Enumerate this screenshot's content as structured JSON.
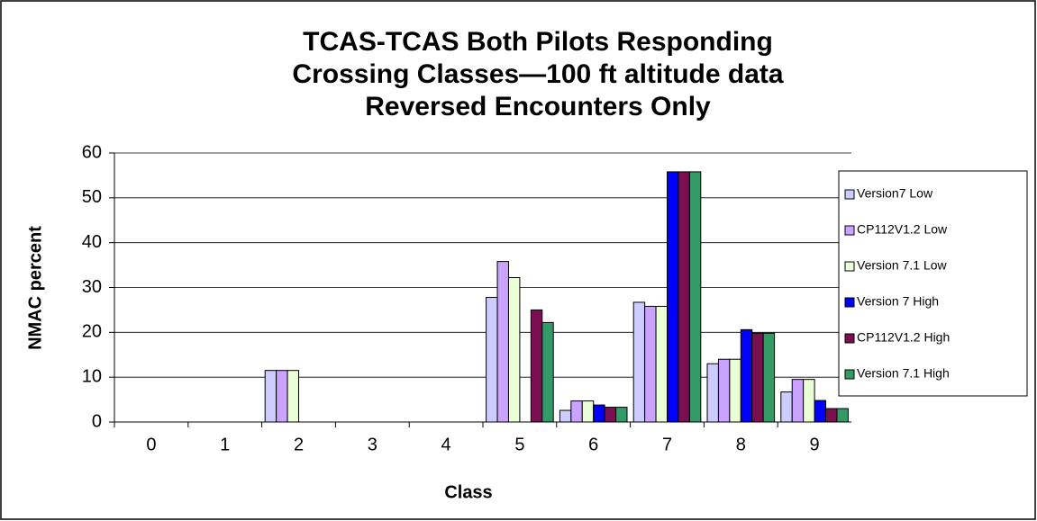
{
  "chart_data": {
    "type": "bar",
    "title": [
      "TCAS-TCAS Both Pilots Responding",
      "Crossing Classes—100 ft altitude data",
      "Reversed Encounters Only"
    ],
    "x_label": "Class",
    "y_label": "NMAC percent",
    "categories": [
      "0",
      "1",
      "2",
      "3",
      "4",
      "5",
      "6",
      "7",
      "8",
      "9"
    ],
    "series": [
      {
        "name": "Version7 Low",
        "color": "#ccccff",
        "values": [
          0,
          0,
          11.5,
          0,
          0,
          27.8,
          2.6,
          26.7,
          13,
          6.7
        ]
      },
      {
        "name": "CP112V1.2 Low",
        "color": "#c9a3ff",
        "values": [
          0,
          0,
          11.5,
          0,
          0,
          35.8,
          4.7,
          25.8,
          14,
          9.5
        ]
      },
      {
        "name": "Version 7.1 Low",
        "color": "#eaffd6",
        "values": [
          0,
          0,
          11.5,
          0,
          0,
          32.2,
          4.7,
          25.8,
          14,
          9.5
        ]
      },
      {
        "name": "Version 7 High",
        "color": "#0000ff",
        "values": [
          0,
          0,
          0,
          0,
          0,
          0,
          3.8,
          55.8,
          20.6,
          4.8
        ]
      },
      {
        "name": "CP112V1.2 High",
        "color": "#7a1050",
        "values": [
          0,
          0,
          0,
          0,
          0,
          25,
          3.3,
          55.8,
          19.8,
          3
        ]
      },
      {
        "name": "Version 7.1 High",
        "color": "#339966",
        "values": [
          0,
          0,
          0,
          0,
          0,
          22.2,
          3.3,
          55.8,
          19.8,
          3
        ]
      }
    ],
    "ylim": [
      0,
      60
    ],
    "yticks": [
      0,
      10,
      20,
      30,
      40,
      50,
      60
    ],
    "grid": true,
    "legend": "right"
  }
}
